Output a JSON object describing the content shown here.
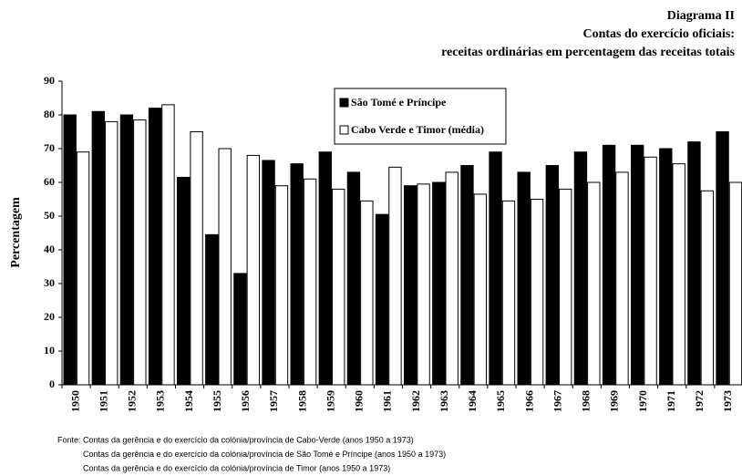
{
  "chart_data": {
    "type": "bar",
    "title": "Diagrama II",
    "subtitle": [
      "Contas do exercício oficiais:",
      "receitas ordinárias em percentagem das receitas totais"
    ],
    "y_label": "Percentagem",
    "categories": [
      "1950",
      "1951",
      "1952",
      "1953",
      "1954",
      "1955",
      "1956",
      "1957",
      "1958",
      "1959",
      "1960",
      "1961",
      "1962",
      "1963",
      "1964",
      "1965",
      "1966",
      "1967",
      "1968",
      "1969",
      "1970",
      "1971",
      "1972",
      "1973"
    ],
    "series": [
      {
        "name": "São Tomé e Príncipe",
        "color": "#000000",
        "values": [
          80,
          81,
          80,
          82,
          61.5,
          44.5,
          33,
          66.5,
          65.5,
          69,
          63,
          50.5,
          59,
          60,
          65,
          69,
          63,
          65,
          69,
          71,
          71,
          70,
          72,
          75
        ]
      },
      {
        "name": "Cabo Verde e Timor (média)",
        "color": "#ffffff",
        "values": [
          69,
          78,
          78.5,
          83,
          75,
          70,
          68,
          59,
          61,
          58,
          54.5,
          64.5,
          59.5,
          63,
          56.5,
          54.5,
          55,
          58,
          60,
          63,
          67.5,
          65.5,
          57.5,
          60
        ]
      }
    ],
    "ylim": [
      0,
      90
    ],
    "yticks": [
      0,
      10,
      20,
      30,
      40,
      50,
      60,
      70,
      80,
      90
    ],
    "legend": "top",
    "notes": [
      "Fonte: Contas da gerência e do exercício da colónia/província de Cabo-Verde (anos 1950 a 1973)",
      "Contas da gerência e do exercício da colónia/província de São Tomé e Príncipe (anos 1950 a 1973)",
      "Contas da gerência e do exercício da colónia/província de Timor (anos 1950 a 1973)"
    ]
  }
}
